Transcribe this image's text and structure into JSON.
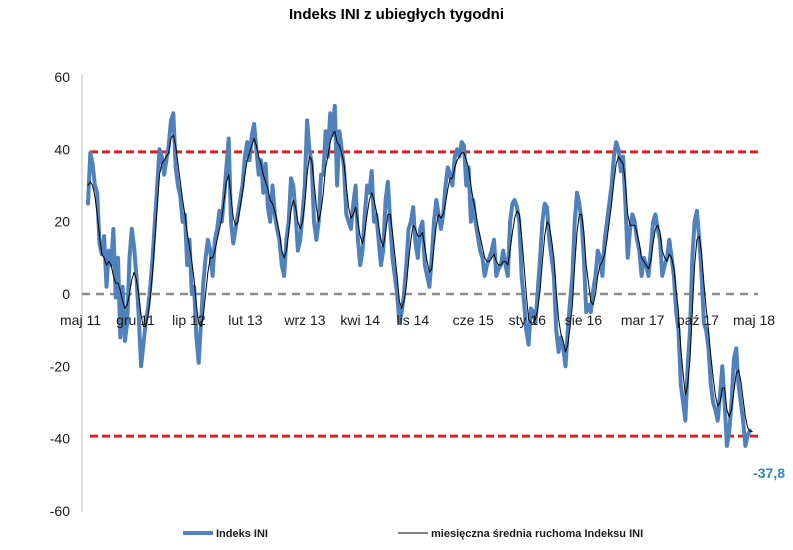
{
  "chart_data": {
    "type": "line",
    "title": "Indeks INI z ubiegłych tygodni",
    "xlabel": "",
    "ylabel": "",
    "ylim": [
      -60,
      60
    ],
    "yticks": [
      60,
      40,
      20,
      0,
      -20,
      -40,
      -60
    ],
    "x_tick_labels": [
      "maj 11",
      "gru 11",
      "lip 12",
      "lut 13",
      "wrz 13",
      "kwi 14",
      "lis 14",
      "cze 15",
      "sty 16",
      "sie 16",
      "mar 17",
      "paź 17",
      "maj 18"
    ],
    "reference_lines": [
      {
        "y": 39.3,
        "color": "#e02020",
        "style": "dashed"
      },
      {
        "y": -39.3,
        "color": "#e02020",
        "style": "dashed"
      },
      {
        "y": 0,
        "color": "#8c8c8c",
        "style": "dashed"
      }
    ],
    "annotations": [
      {
        "text": "-37,8",
        "y": -37.8,
        "color": "#2e86c9"
      }
    ],
    "legend_position": "bottom",
    "grid": false,
    "series": [
      {
        "name": "Indeks INI",
        "color": "#4f81bd",
        "values": [
          25,
          39,
          36,
          30,
          28,
          14,
          11,
          16,
          2,
          12,
          8,
          18,
          -1,
          10,
          -12,
          2,
          -13,
          -8,
          10,
          18,
          13,
          5,
          -6,
          -20,
          -14,
          -8,
          -4,
          2,
          10,
          20,
          30,
          40,
          38,
          33,
          37,
          41,
          48,
          50,
          35,
          30,
          27,
          20,
          22,
          8,
          15,
          0,
          2,
          -12,
          -19,
          -8,
          3,
          10,
          15,
          12,
          5,
          15,
          18,
          23,
          20,
          27,
          35,
          43,
          20,
          14,
          18,
          22,
          26,
          30,
          38,
          42,
          37,
          44,
          47,
          40,
          33,
          37,
          28,
          36,
          24,
          20,
          30,
          22,
          18,
          15,
          8,
          5,
          15,
          20,
          32,
          30,
          22,
          12,
          15,
          22,
          30,
          48,
          40,
          36,
          20,
          15,
          20,
          33,
          33,
          45,
          38,
          50,
          44,
          52,
          30,
          45,
          40,
          35,
          22,
          20,
          18,
          25,
          30,
          15,
          8,
          12,
          22,
          30,
          28,
          34,
          20,
          22,
          15,
          8,
          12,
          26,
          31,
          20,
          10,
          5,
          0,
          -8,
          -5,
          0,
          8,
          18,
          20,
          24,
          14,
          10,
          18,
          20,
          8,
          5,
          2,
          10,
          20,
          26,
          22,
          18,
          22,
          30,
          35,
          33,
          30,
          38,
          40,
          38,
          42,
          41,
          30,
          35,
          20,
          26,
          20,
          16,
          12,
          10,
          5,
          8,
          10,
          12,
          15,
          5,
          7,
          8,
          12,
          8,
          5,
          20,
          25,
          26,
          24,
          20,
          5,
          -2,
          -10,
          -14,
          -4,
          -5,
          -8,
          1,
          10,
          20,
          25,
          24,
          15,
          10,
          5,
          -10,
          -16,
          -12,
          -15,
          -20,
          -10,
          -2,
          5,
          20,
          28,
          25,
          20,
          10,
          -5,
          -3,
          -5,
          1,
          5,
          12,
          10,
          5,
          15,
          20,
          25,
          30,
          38,
          42,
          40,
          34,
          38,
          25,
          10,
          18,
          22,
          20,
          15,
          12,
          5,
          10,
          8,
          5,
          12,
          20,
          22,
          18,
          15,
          5,
          8,
          10,
          15,
          10,
          5,
          -5,
          -10,
          -25,
          -30,
          -35,
          -20,
          -10,
          10,
          20,
          23,
          15,
          5,
          -8,
          -10,
          -15,
          -25,
          -30,
          -32,
          -35,
          -28,
          -20,
          -30,
          -42,
          -38,
          -30,
          -18,
          -15,
          -25,
          -30,
          -35,
          -42,
          -39,
          -37.8
        ]
      },
      {
        "name": "miesięczna średnia ruchoma Indeksu INI",
        "color": "#000000",
        "values": [
          30,
          31,
          30,
          27,
          22,
          16,
          11,
          10,
          8,
          9,
          8,
          5,
          3,
          3,
          1,
          -2,
          -4,
          -3,
          0,
          4,
          6,
          4,
          0,
          -6,
          -9,
          -9,
          -6,
          -1,
          6,
          15,
          24,
          33,
          36,
          37,
          38,
          39,
          43,
          44,
          41,
          36,
          31,
          26,
          22,
          17,
          13,
          9,
          4,
          -3,
          -8,
          -9,
          -6,
          0,
          6,
          10,
          10,
          12,
          15,
          18,
          21,
          26,
          31,
          33,
          27,
          21,
          19,
          20,
          24,
          28,
          33,
          37,
          39,
          41,
          43,
          41,
          38,
          36,
          33,
          31,
          29,
          26,
          25,
          23,
          20,
          17,
          12,
          10,
          12,
          17,
          23,
          26,
          24,
          20,
          18,
          20,
          25,
          33,
          38,
          37,
          31,
          24,
          20,
          23,
          28,
          35,
          38,
          42,
          44,
          45,
          42,
          41,
          39,
          36,
          30,
          24,
          21,
          22,
          24,
          20,
          16,
          14,
          17,
          22,
          26,
          28,
          26,
          23,
          19,
          15,
          13,
          17,
          22,
          22,
          17,
          11,
          5,
          -2,
          -4,
          -2,
          2,
          9,
          15,
          19,
          18,
          16,
          16,
          17,
          13,
          9,
          6,
          7,
          13,
          19,
          22,
          21,
          22,
          25,
          29,
          32,
          32,
          35,
          37,
          38,
          39,
          39,
          37,
          35,
          30,
          26,
          23,
          19,
          16,
          13,
          10,
          9,
          9,
          10,
          11,
          9,
          8,
          8,
          9,
          9,
          8,
          12,
          17,
          21,
          23,
          22,
          16,
          8,
          0,
          -7,
          -8,
          -8,
          -7,
          -4,
          1,
          9,
          16,
          20,
          19,
          15,
          10,
          1,
          -7,
          -11,
          -13,
          -16,
          -14,
          -9,
          -3,
          8,
          17,
          22,
          22,
          17,
          8,
          3,
          -2,
          -3,
          0,
          5,
          8,
          9,
          11,
          15,
          20,
          25,
          31,
          36,
          38,
          37,
          36,
          31,
          22,
          19,
          19,
          19,
          17,
          14,
          10,
          9,
          8,
          7,
          9,
          14,
          18,
          19,
          17,
          12,
          10,
          9,
          11,
          10,
          7,
          1,
          -5,
          -15,
          -22,
          -28,
          -25,
          -18,
          -5,
          8,
          15,
          16,
          11,
          3,
          -4,
          -10,
          -17,
          -23,
          -28,
          -31,
          -30,
          -26,
          -26,
          -32,
          -34,
          -32,
          -27,
          -22,
          -21,
          -24,
          -29,
          -34,
          -37,
          -38,
          -38
        ]
      }
    ]
  }
}
